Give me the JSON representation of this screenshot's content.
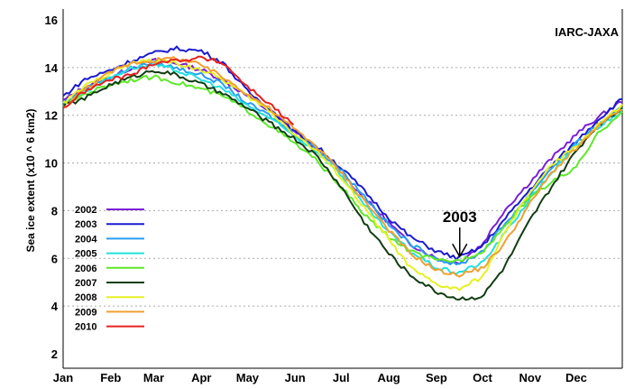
{
  "chart_data": {
    "type": "line",
    "title": "",
    "watermark": "IARC-JAXA",
    "xlabel": "",
    "ylabel": "Sea ice extent (x10 ^ 6 km2)",
    "ylim": [
      2,
      16
    ],
    "yticks": [
      2,
      4,
      6,
      8,
      10,
      12,
      14,
      16
    ],
    "grid": "horizontal dotted",
    "xlim_day_of_year": [
      1,
      365
    ],
    "xtick_labels": [
      "Jan",
      "Feb",
      "Mar",
      "Apr",
      "May",
      "Jun",
      "Jul",
      "Aug",
      "Sep",
      "Oct",
      "Nov",
      "Dec"
    ],
    "xtick_days": [
      1,
      32,
      60,
      91,
      121,
      152,
      182,
      213,
      244,
      274,
      305,
      335
    ],
    "legend_placement": "left-center",
    "annotation": {
      "text": "2003",
      "points_to_day": 258,
      "points_to_value": 6.0
    },
    "x_days": [
      1,
      15,
      32,
      46,
      60,
      74,
      91,
      105,
      121,
      135,
      152,
      166,
      182,
      196,
      213,
      227,
      244,
      258,
      274,
      288,
      305,
      319,
      335,
      349,
      365
    ],
    "series": [
      {
        "name": "2002",
        "color": "#7b1fd6",
        "values": [
          12.6,
          13.2,
          13.6,
          14.0,
          14.3,
          14.2,
          13.9,
          13.5,
          12.8,
          12.2,
          11.3,
          10.6,
          9.6,
          8.6,
          7.5,
          6.6,
          6.0,
          5.8,
          6.6,
          8.0,
          9.2,
          10.2,
          11.2,
          11.9,
          12.6
        ]
      },
      {
        "name": "2003",
        "color": "#1a1ad0",
        "values": [
          12.8,
          13.5,
          13.9,
          14.3,
          14.6,
          14.8,
          14.7,
          14.2,
          13.0,
          12.3,
          11.3,
          10.7,
          9.8,
          8.9,
          7.7,
          6.9,
          6.3,
          6.0,
          6.5,
          7.6,
          8.9,
          9.9,
          10.9,
          11.8,
          12.7
        ]
      },
      {
        "name": "2004",
        "color": "#2a9df0",
        "values": [
          12.5,
          13.1,
          13.6,
          14.0,
          14.2,
          14.0,
          13.7,
          13.3,
          12.5,
          12.0,
          11.2,
          10.6,
          9.7,
          8.7,
          7.4,
          6.6,
          6.0,
          5.7,
          6.3,
          7.4,
          8.7,
          9.8,
          10.8,
          11.6,
          12.3
        ]
      },
      {
        "name": "2005",
        "color": "#22e0e0",
        "values": [
          12.4,
          13.0,
          13.6,
          14.0,
          14.1,
          13.9,
          13.5,
          13.1,
          12.4,
          11.9,
          11.1,
          10.5,
          9.5,
          8.3,
          7.1,
          6.3,
          5.6,
          5.4,
          5.8,
          7.0,
          8.5,
          9.6,
          10.7,
          11.5,
          12.2
        ]
      },
      {
        "name": "2006",
        "color": "#5ee82a",
        "values": [
          12.4,
          12.9,
          13.3,
          13.5,
          13.6,
          13.4,
          13.1,
          12.8,
          12.2,
          11.6,
          10.8,
          10.1,
          9.0,
          7.9,
          6.9,
          6.3,
          5.9,
          5.9,
          6.3,
          7.3,
          8.6,
          9.2,
          9.8,
          11.2,
          12.2
        ]
      },
      {
        "name": "2007",
        "color": "#123d12",
        "values": [
          12.4,
          12.7,
          13.3,
          13.6,
          13.9,
          13.7,
          13.3,
          12.9,
          12.3,
          11.7,
          11.0,
          10.3,
          9.0,
          7.6,
          6.2,
          5.3,
          4.6,
          4.3,
          4.4,
          5.6,
          7.6,
          9.0,
          10.5,
          11.6,
          12.3
        ]
      },
      {
        "name": "2008",
        "color": "#e6f020",
        "values": [
          12.5,
          13.2,
          13.8,
          14.2,
          14.3,
          14.2,
          13.9,
          13.5,
          12.8,
          12.2,
          11.2,
          10.5,
          9.4,
          8.2,
          6.8,
          5.6,
          4.9,
          4.7,
          5.2,
          7.0,
          8.8,
          9.9,
          10.7,
          11.6,
          12.4
        ]
      },
      {
        "name": "2009",
        "color": "#f0a030",
        "values": [
          12.3,
          13.1,
          13.8,
          14.2,
          14.3,
          14.4,
          14.1,
          13.6,
          12.9,
          12.3,
          11.4,
          10.7,
          9.6,
          8.5,
          7.2,
          6.2,
          5.5,
          5.3,
          5.6,
          6.6,
          8.3,
          9.6,
          10.6,
          11.5,
          12.3
        ]
      },
      {
        "name": "2010",
        "color": "#e82020",
        "values": [
          12.3,
          13.0,
          13.5,
          13.7,
          14.2,
          14.3,
          14.4,
          14.2,
          13.2,
          12.5,
          11.5
        ]
      }
    ]
  }
}
